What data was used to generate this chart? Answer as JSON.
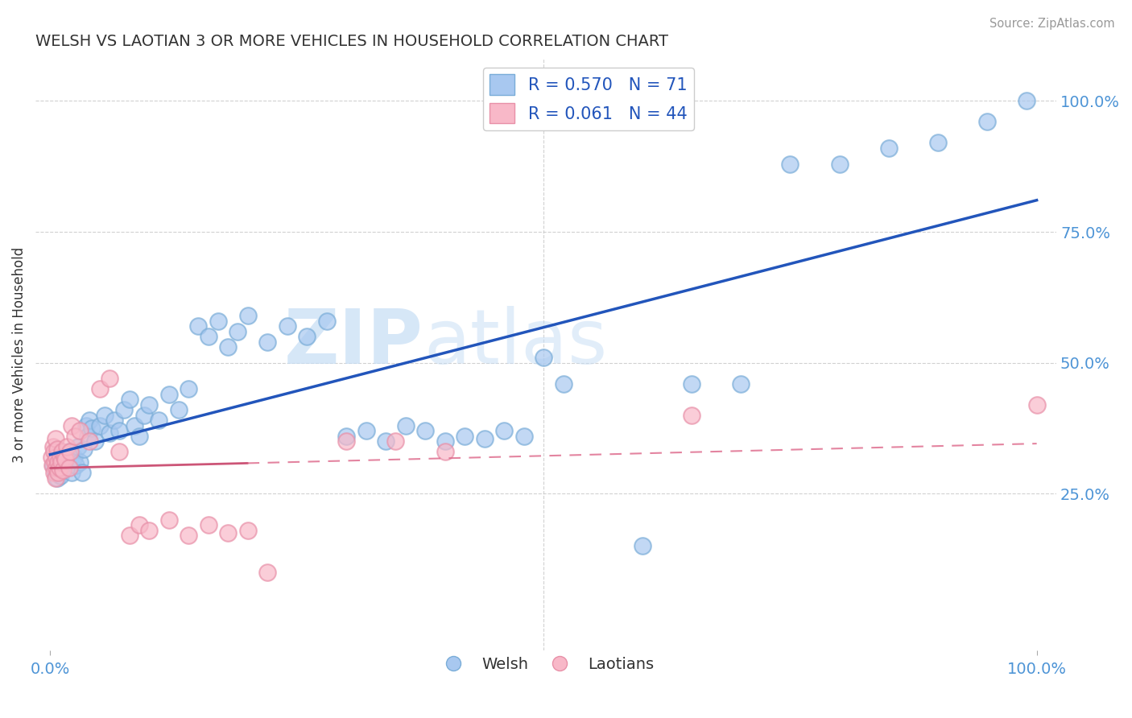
{
  "title": "WELSH VS LAOTIAN 3 OR MORE VEHICLES IN HOUSEHOLD CORRELATION CHART",
  "source": "Source: ZipAtlas.com",
  "legend_welsh": "R = 0.570   N = 71",
  "legend_laotian": "R = 0.061   N = 44",
  "welsh_fill": "#a8c8f0",
  "welsh_edge": "#7aadd8",
  "laotian_fill": "#f8b8c8",
  "laotian_edge": "#e890a8",
  "welsh_line_color": "#2255bb",
  "laotian_line_color": "#dd6688",
  "laotian_line_color_solid": "#cc5577",
  "watermark_color": "#c5ddf5",
  "ylabel_label": "3 or more Vehicles in Household",
  "welsh_points": [
    [
      0.3,
      30.5
    ],
    [
      0.5,
      29.0
    ],
    [
      0.6,
      31.0
    ],
    [
      0.7,
      28.0
    ],
    [
      0.8,
      32.5
    ],
    [
      0.9,
      30.0
    ],
    [
      1.0,
      28.5
    ],
    [
      1.1,
      32.0
    ],
    [
      1.3,
      29.5
    ],
    [
      1.5,
      31.0
    ],
    [
      1.7,
      30.0
    ],
    [
      1.9,
      33.0
    ],
    [
      2.0,
      31.5
    ],
    [
      2.2,
      29.0
    ],
    [
      2.4,
      32.0
    ],
    [
      2.6,
      30.5
    ],
    [
      2.8,
      34.0
    ],
    [
      3.0,
      31.0
    ],
    [
      3.2,
      29.0
    ],
    [
      3.4,
      33.5
    ],
    [
      3.6,
      38.0
    ],
    [
      3.8,
      36.0
    ],
    [
      4.0,
      39.0
    ],
    [
      4.2,
      37.5
    ],
    [
      4.5,
      35.0
    ],
    [
      5.0,
      38.0
    ],
    [
      5.5,
      40.0
    ],
    [
      6.0,
      36.5
    ],
    [
      6.5,
      39.0
    ],
    [
      7.0,
      37.0
    ],
    [
      7.5,
      41.0
    ],
    [
      8.0,
      43.0
    ],
    [
      8.5,
      38.0
    ],
    [
      9.0,
      36.0
    ],
    [
      9.5,
      40.0
    ],
    [
      10.0,
      42.0
    ],
    [
      11.0,
      39.0
    ],
    [
      12.0,
      44.0
    ],
    [
      13.0,
      41.0
    ],
    [
      14.0,
      45.0
    ],
    [
      15.0,
      57.0
    ],
    [
      16.0,
      55.0
    ],
    [
      17.0,
      58.0
    ],
    [
      18.0,
      53.0
    ],
    [
      19.0,
      56.0
    ],
    [
      20.0,
      59.0
    ],
    [
      22.0,
      54.0
    ],
    [
      24.0,
      57.0
    ],
    [
      26.0,
      55.0
    ],
    [
      28.0,
      58.0
    ],
    [
      30.0,
      36.0
    ],
    [
      32.0,
      37.0
    ],
    [
      34.0,
      35.0
    ],
    [
      36.0,
      38.0
    ],
    [
      38.0,
      37.0
    ],
    [
      40.0,
      35.0
    ],
    [
      42.0,
      36.0
    ],
    [
      44.0,
      35.5
    ],
    [
      46.0,
      37.0
    ],
    [
      48.0,
      36.0
    ],
    [
      50.0,
      51.0
    ],
    [
      52.0,
      46.0
    ],
    [
      60.0,
      15.0
    ],
    [
      65.0,
      46.0
    ],
    [
      70.0,
      46.0
    ],
    [
      75.0,
      88.0
    ],
    [
      80.0,
      88.0
    ],
    [
      85.0,
      91.0
    ],
    [
      90.0,
      92.0
    ],
    [
      95.0,
      96.0
    ],
    [
      99.0,
      100.0
    ]
  ],
  "laotian_points": [
    [
      0.1,
      32.0
    ],
    [
      0.2,
      30.5
    ],
    [
      0.3,
      34.0
    ],
    [
      0.35,
      29.0
    ],
    [
      0.4,
      33.0
    ],
    [
      0.45,
      31.0
    ],
    [
      0.5,
      35.5
    ],
    [
      0.55,
      28.0
    ],
    [
      0.6,
      32.0
    ],
    [
      0.65,
      30.0
    ],
    [
      0.7,
      33.5
    ],
    [
      0.75,
      29.0
    ],
    [
      0.8,
      31.0
    ],
    [
      0.9,
      30.0
    ],
    [
      1.0,
      32.0
    ],
    [
      1.1,
      31.0
    ],
    [
      1.2,
      33.0
    ],
    [
      1.3,
      29.5
    ],
    [
      1.4,
      32.0
    ],
    [
      1.5,
      31.5
    ],
    [
      1.7,
      34.0
    ],
    [
      1.9,
      30.0
    ],
    [
      2.0,
      33.0
    ],
    [
      2.2,
      38.0
    ],
    [
      2.5,
      36.0
    ],
    [
      3.0,
      37.0
    ],
    [
      4.0,
      35.0
    ],
    [
      5.0,
      45.0
    ],
    [
      6.0,
      47.0
    ],
    [
      7.0,
      33.0
    ],
    [
      8.0,
      17.0
    ],
    [
      9.0,
      19.0
    ],
    [
      10.0,
      18.0
    ],
    [
      12.0,
      20.0
    ],
    [
      14.0,
      17.0
    ],
    [
      16.0,
      19.0
    ],
    [
      18.0,
      17.5
    ],
    [
      20.0,
      18.0
    ],
    [
      22.0,
      10.0
    ],
    [
      30.0,
      35.0
    ],
    [
      35.0,
      35.0
    ],
    [
      40.0,
      33.0
    ],
    [
      65.0,
      40.0
    ],
    [
      100.0,
      42.0
    ]
  ],
  "xlim": [
    -1.5,
    102
  ],
  "ylim": [
    -5,
    108
  ],
  "grid_color": "#cccccc",
  "title_color": "#333333",
  "tick_label_color": "#4d94d6"
}
